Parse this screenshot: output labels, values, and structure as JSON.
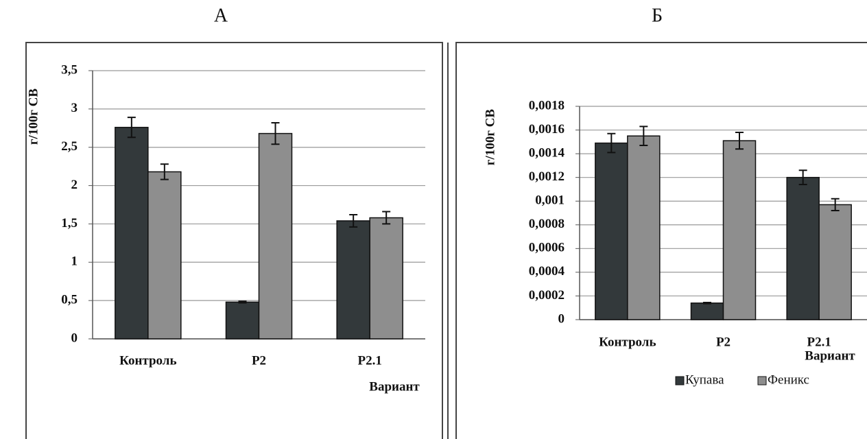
{
  "chart_data": [
    {
      "type": "bar",
      "title": "А",
      "y_label": "г/100г СВ",
      "x_label": "Вариант",
      "categories": [
        "Контроль",
        "P2",
        "P2.1"
      ],
      "series": [
        {
          "color": "#33393b",
          "values": [
            2.76,
            0.48,
            1.54
          ],
          "errors": [
            0.13,
            0.01,
            0.08
          ]
        },
        {
          "color": "#8e8e8e",
          "values": [
            2.18,
            2.68,
            1.58
          ],
          "errors": [
            0.1,
            0.14,
            0.08
          ]
        }
      ],
      "ylim": [
        0,
        3.5
      ],
      "yticks": [
        0,
        {
          "value": 0.5,
          "label": "0,5"
        },
        1,
        {
          "value": 1.5,
          "label": "1,5"
        },
        2,
        {
          "value": 2.5,
          "label": "2,5"
        },
        3,
        {
          "value": 3.5,
          "label": "3,5"
        }
      ],
      "grid": true
    },
    {
      "type": "bar",
      "title": "Б",
      "y_label": "г/100г СВ",
      "x_label": "Вариант",
      "categories": [
        "Контроль",
        "P2",
        "P2.1"
      ],
      "series": [
        {
          "name": "Купава",
          "color": "#33393b",
          "values": [
            0.00149,
            0.00014,
            0.0012
          ],
          "errors": [
            8e-05,
            5e-06,
            6e-05
          ]
        },
        {
          "name": "Феникс",
          "color": "#8e8e8e",
          "values": [
            0.00155,
            0.00151,
            0.00097
          ],
          "errors": [
            8e-05,
            7e-05,
            5e-05
          ]
        }
      ],
      "ylim": [
        0,
        0.0018
      ],
      "yticks": [
        0,
        {
          "value": 0.0002,
          "label": "0,0002"
        },
        {
          "value": 0.0004,
          "label": "0,0004"
        },
        {
          "value": 0.0006,
          "label": "0,0006"
        },
        {
          "value": 0.0008,
          "label": "0,0008"
        },
        {
          "value": 0.001,
          "label": "0,001"
        },
        {
          "value": 0.0012,
          "label": "0,0012"
        },
        {
          "value": 0.0014,
          "label": "0,0014"
        },
        {
          "value": 0.0016,
          "label": "0,0016"
        },
        {
          "value": 0.0018,
          "label": "0,0018"
        }
      ],
      "grid": true,
      "legend": "bottom"
    }
  ]
}
